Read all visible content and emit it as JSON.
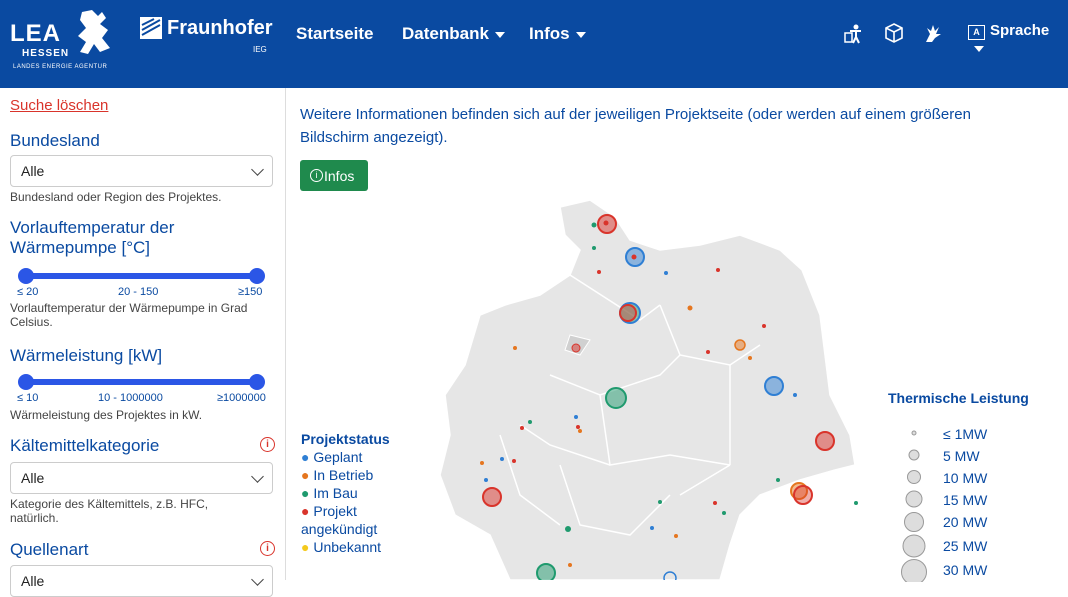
{
  "header": {
    "lea_logo": "LEA",
    "lea_sub1": "HESSEN",
    "lea_sub2": "LANDES ENERGIE AGENTUR",
    "fh_name": "Fraunhofer",
    "fh_sub": "IEG",
    "nav": [
      {
        "label": "Startseite"
      },
      {
        "label": "Datenbank"
      },
      {
        "label": "Infos"
      }
    ],
    "icons": [
      "accessibility-icon",
      "cube-icon",
      "sign-language-icon"
    ],
    "language_label": "Sprache"
  },
  "sidebar": {
    "clear_search": "Suche löschen",
    "bundesland": {
      "label": "Bundesland",
      "value": "Alle",
      "help": "Bundesland oder Region des Projektes."
    },
    "vorlauf": {
      "label": "Vorlauftemperatur der Wärmepumpe [°C]",
      "tick_min": "≤ 20",
      "tick_mid": "20 - 150",
      "tick_max": "≥150",
      "help": "Vorlauftemperatur der Wärmepumpe in Grad Celsius."
    },
    "waermeleistung": {
      "label": "Wärmeleistung [kW]",
      "tick_min": "≤ 10",
      "tick_mid": "10 - 1000000",
      "tick_max": "≥1000000",
      "help": "Wärmeleistung des Projektes in kW."
    },
    "kaeltemittel": {
      "label": "Kältemittelkategorie",
      "value": "Alle",
      "help": "Kategorie des Kältemittels, z.B. HFC, natürlich."
    },
    "quellenart": {
      "label": "Quellenart",
      "value": "Alle"
    }
  },
  "main": {
    "intro": "Weitere Informationen befinden sich auf der jeweiligen Projektseite (oder werden auf einem größeren Bildschirm angezeigt).",
    "infos_button": "Infos"
  },
  "legend_status": {
    "title": "Projektstatus",
    "items": [
      {
        "label": "Geplant",
        "color": "#2f7fd4"
      },
      {
        "label": "In Betrieb",
        "color": "#e5761f"
      },
      {
        "label": "Im Bau",
        "color": "#1f9a6e"
      },
      {
        "label": "Projekt angekündigt",
        "color": "#d9342b"
      },
      {
        "label": "Unbekannt",
        "color": "#f4c91c"
      }
    ]
  },
  "legend_size": {
    "title": "Thermische Leistung",
    "items": [
      "≤ 1MW",
      "5 MW",
      "10 MW",
      "15 MW",
      "20 MW",
      "25 MW",
      "30 MW"
    ]
  },
  "colors": {
    "brand": "#0a4aa1",
    "accent_slider": "#2b56e6",
    "button_green": "#1f8a4d",
    "map_fill": "#e6e6e6"
  }
}
